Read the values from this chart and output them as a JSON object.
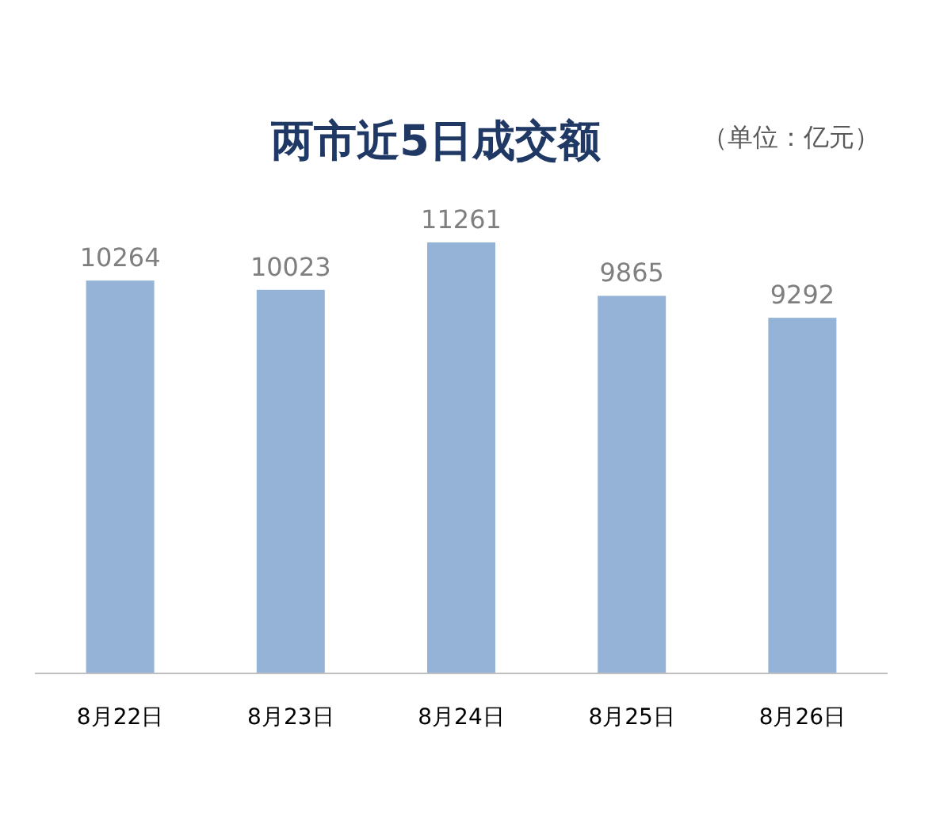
{
  "chart_data": {
    "type": "bar",
    "title": "两市近5日成交额",
    "annotations": [
      "（单位：亿元）"
    ],
    "categories": [
      "8月22日",
      "8月23日",
      "8月24日",
      "8月25日",
      "8月26日"
    ],
    "values": [
      10264,
      10023,
      11261,
      9865,
      9292
    ],
    "color": "#95b3d7",
    "data_labels": true
  }
}
